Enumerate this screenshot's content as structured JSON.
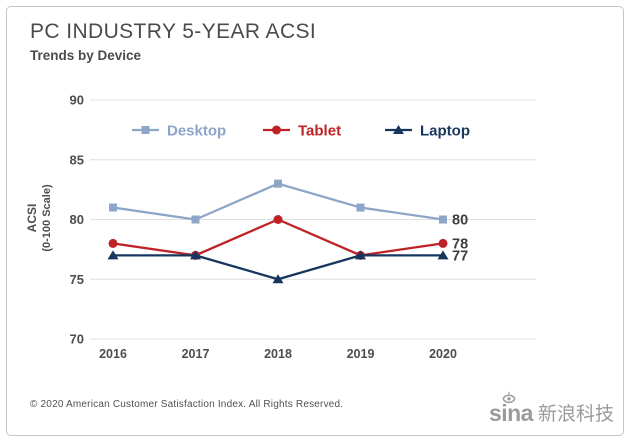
{
  "page": {
    "footer": "© 2020 American Customer Satisfaction Index. All Rights Reserved.",
    "watermark": {
      "brand": "sina",
      "brand_cn": "新浪科技"
    }
  },
  "chart_data": {
    "type": "line",
    "title": "PC INDUSTRY 5-YEAR ACSI",
    "subtitle": "Trends by Device",
    "categories": [
      "2016",
      "2017",
      "2018",
      "2019",
      "2020"
    ],
    "series": [
      {
        "name": "Desktop",
        "values": [
          81,
          80,
          83,
          81,
          80
        ],
        "color": "#8DA5C8",
        "marker": "square",
        "end_label": "80"
      },
      {
        "name": "Tablet",
        "values": [
          78,
          77,
          80,
          77,
          78
        ],
        "color": "#BE2126",
        "marker": "circle",
        "end_label": "78"
      },
      {
        "name": "Laptop",
        "values": [
          77,
          77,
          75,
          77,
          77
        ],
        "color": "#17365D",
        "marker": "triangle",
        "end_label": "77"
      }
    ],
    "ylabel": "ACSI",
    "ylabel2": "(0-100 Scale)",
    "ylim": [
      70,
      90
    ],
    "yticks": [
      70,
      75,
      80,
      85,
      90
    ],
    "grid": true,
    "legend_position": "top",
    "colors": {
      "gridline": "#E0E0E0",
      "tick_label": "#4D4D4D",
      "end_label": "#3E3E3E",
      "axis_label": "#4D4D4D"
    }
  }
}
